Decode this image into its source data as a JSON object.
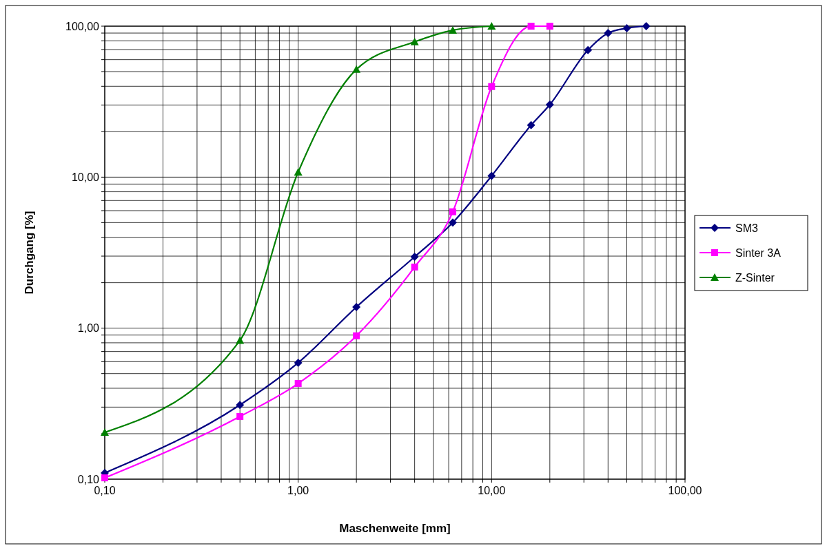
{
  "chart_data": {
    "type": "line",
    "xlabel": "Maschenweite [mm]",
    "ylabel": "Durchgang [%]",
    "log": "xy",
    "grid": true,
    "legend": "right",
    "line_style": "solid",
    "xlim": [
      0.1,
      100
    ],
    "ylim": [
      0.1,
      100
    ],
    "xticks": [
      {
        "value": 0.1,
        "label": "0,10"
      },
      {
        "value": 0.2,
        "label": null
      },
      {
        "value": 0.3,
        "label": null
      },
      {
        "value": 0.4,
        "label": null
      },
      {
        "value": 0.5,
        "label": null
      },
      {
        "value": 0.6,
        "label": null
      },
      {
        "value": 0.7,
        "label": null
      },
      {
        "value": 0.8,
        "label": null
      },
      {
        "value": 0.9,
        "label": null
      },
      {
        "value": 1,
        "label": "1,00"
      },
      {
        "value": 2,
        "label": null
      },
      {
        "value": 3,
        "label": null
      },
      {
        "value": 4,
        "label": null
      },
      {
        "value": 5,
        "label": null
      },
      {
        "value": 6,
        "label": null
      },
      {
        "value": 7,
        "label": null
      },
      {
        "value": 8,
        "label": null
      },
      {
        "value": 9,
        "label": null
      },
      {
        "value": 10,
        "label": "10,00"
      },
      {
        "value": 20,
        "label": null
      },
      {
        "value": 30,
        "label": null
      },
      {
        "value": 40,
        "label": null
      },
      {
        "value": 50,
        "label": null
      },
      {
        "value": 60,
        "label": null
      },
      {
        "value": 70,
        "label": null
      },
      {
        "value": 80,
        "label": null
      },
      {
        "value": 90,
        "label": null
      },
      {
        "value": 100,
        "label": "100,00"
      }
    ],
    "yticks": [
      {
        "value": 0.1,
        "label": "0,10"
      },
      {
        "value": 0.2,
        "label": null
      },
      {
        "value": 0.3,
        "label": null
      },
      {
        "value": 0.4,
        "label": null
      },
      {
        "value": 0.5,
        "label": null
      },
      {
        "value": 0.6,
        "label": null
      },
      {
        "value": 0.7,
        "label": null
      },
      {
        "value": 0.8,
        "label": null
      },
      {
        "value": 0.9,
        "label": null
      },
      {
        "value": 1,
        "label": "1,00"
      },
      {
        "value": 2,
        "label": null
      },
      {
        "value": 3,
        "label": null
      },
      {
        "value": 4,
        "label": null
      },
      {
        "value": 5,
        "label": null
      },
      {
        "value": 6,
        "label": null
      },
      {
        "value": 7,
        "label": null
      },
      {
        "value": 8,
        "label": null
      },
      {
        "value": 9,
        "label": null
      },
      {
        "value": 10,
        "label": "10,00"
      },
      {
        "value": 20,
        "label": null
      },
      {
        "value": 30,
        "label": null
      },
      {
        "value": 40,
        "label": null
      },
      {
        "value": 50,
        "label": null
      },
      {
        "value": 60,
        "label": null
      },
      {
        "value": 70,
        "label": null
      },
      {
        "value": 80,
        "label": null
      },
      {
        "value": 90,
        "label": null
      },
      {
        "value": 100,
        "label": "100,00"
      }
    ],
    "series": [
      {
        "name": "SM3",
        "color": "#000080",
        "marker": "diamond",
        "x": [
          0.1,
          0.5,
          1,
          2,
          4,
          6.3,
          10,
          16,
          20,
          31.5,
          40,
          50,
          63
        ],
        "values": [
          0.11,
          0.31,
          0.59,
          1.38,
          2.97,
          5.0,
          10.2,
          22.1,
          30.2,
          69.5,
          90,
          97,
          100
        ]
      },
      {
        "name": "Sinter 3A",
        "color": "#ff00ff",
        "marker": "square",
        "x": [
          0.1,
          0.5,
          1,
          2,
          4,
          6.3,
          10,
          16,
          20
        ],
        "values": [
          0.102,
          0.26,
          0.43,
          0.89,
          2.54,
          5.9,
          39.8,
          100,
          100
        ]
      },
      {
        "name": "Z-Sinter",
        "color": "#008000",
        "marker": "triangle",
        "x": [
          0.1,
          0.5,
          1,
          2,
          4,
          6.3,
          10
        ],
        "values": [
          0.204,
          0.83,
          10.8,
          51.7,
          78.7,
          94,
          100
        ]
      }
    ]
  }
}
